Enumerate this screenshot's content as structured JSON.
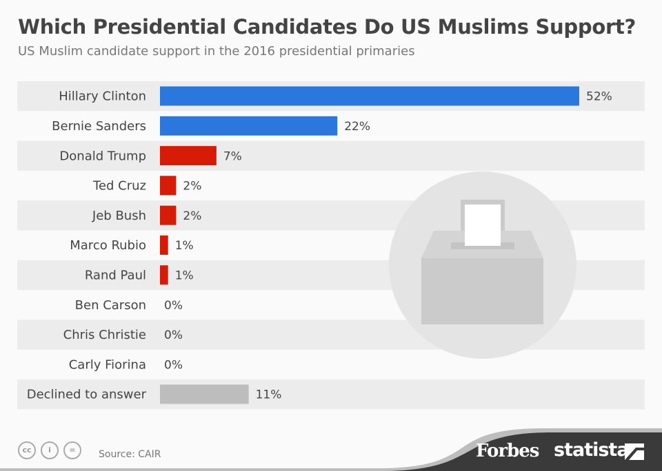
{
  "chart_data": {
    "type": "bar",
    "orientation": "horizontal",
    "title": "Which Presidential Candidates Do US Muslims Support?",
    "subtitle": "US Muslim candidate support in the 2016 presidential primaries",
    "categories": [
      "Hillary Clinton",
      "Bernie Sanders",
      "Donald Trump",
      "Ted Cruz",
      "Jeb Bush",
      "Marco Rubio",
      "Rand Paul",
      "Ben Carson",
      "Chris Christie",
      "Carly Fiorina",
      "Declined to answer"
    ],
    "values": [
      52,
      22,
      7,
      2,
      2,
      1,
      1,
      0,
      0,
      0,
      11
    ],
    "labels": [
      "52%",
      "22%",
      "7%",
      "2%",
      "2%",
      "1%",
      "1%",
      "0%",
      "0%",
      "0%",
      "11%"
    ],
    "colors": [
      "#2a78de",
      "#2a78de",
      "#d61b06",
      "#d61b06",
      "#d61b06",
      "#d61b06",
      "#d61b06",
      "#d61b06",
      "#d61b06",
      "#d61b06",
      "#bdbdbd"
    ],
    "unit": "%",
    "xlim": [
      0,
      52
    ]
  },
  "footer": {
    "source": "Source: CAIR",
    "forbes": "Forbes",
    "statista": "statista",
    "cc_icons": [
      "cc",
      "by",
      "nd"
    ]
  }
}
